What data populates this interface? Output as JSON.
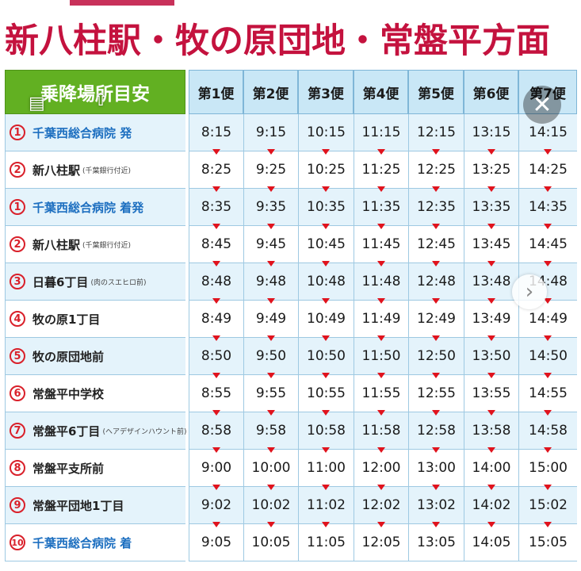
{
  "title": "新八柱駅・牧の原団地・常盤平方面",
  "table": {
    "stop_header": "乗降場所目安",
    "trips": [
      "第1便",
      "第2便",
      "第3便",
      "第4便",
      "第5便",
      "第6便",
      "第7便"
    ],
    "rows": [
      {
        "num": "1",
        "name": "千葉西総合病院 発",
        "note": "",
        "highlight": true,
        "times": [
          "8:15",
          "9:15",
          "10:15",
          "11:15",
          "12:15",
          "13:15",
          "14:15"
        ]
      },
      {
        "num": "2",
        "name": "新八柱駅",
        "note": "(千葉銀行付近)",
        "highlight": false,
        "times": [
          "8:25",
          "9:25",
          "10:25",
          "11:25",
          "12:25",
          "13:25",
          "14:25"
        ]
      },
      {
        "num": "1",
        "name": "千葉西総合病院 着発",
        "note": "",
        "highlight": true,
        "times": [
          "8:35",
          "9:35",
          "10:35",
          "11:35",
          "12:35",
          "13:35",
          "14:35"
        ]
      },
      {
        "num": "2",
        "name": "新八柱駅",
        "note": "(千葉銀行付近)",
        "highlight": false,
        "times": [
          "8:45",
          "9:45",
          "10:45",
          "11:45",
          "12:45",
          "13:45",
          "14:45"
        ]
      },
      {
        "num": "3",
        "name": "日暮6丁目",
        "note": "(肉のスエヒロ前)",
        "highlight": false,
        "times": [
          "8:48",
          "9:48",
          "10:48",
          "11:48",
          "12:48",
          "13:48",
          "14:48"
        ]
      },
      {
        "num": "4",
        "name": "牧の原1丁目",
        "note": "",
        "highlight": false,
        "times": [
          "8:49",
          "9:49",
          "10:49",
          "11:49",
          "12:49",
          "13:49",
          "14:49"
        ]
      },
      {
        "num": "5",
        "name": "牧の原団地前",
        "note": "",
        "highlight": false,
        "times": [
          "8:50",
          "9:50",
          "10:50",
          "11:50",
          "12:50",
          "13:50",
          "14:50"
        ]
      },
      {
        "num": "6",
        "name": "常盤平中学校",
        "note": "",
        "highlight": false,
        "times": [
          "8:55",
          "9:55",
          "10:55",
          "11:55",
          "12:55",
          "13:55",
          "14:55"
        ]
      },
      {
        "num": "7",
        "name": "常盤平6丁目",
        "note": "(ヘアデザインハウント前)",
        "highlight": false,
        "times": [
          "8:58",
          "9:58",
          "10:58",
          "11:58",
          "12:58",
          "13:58",
          "14:58"
        ]
      },
      {
        "num": "8",
        "name": "常盤平支所前",
        "note": "",
        "highlight": false,
        "times": [
          "9:00",
          "10:00",
          "11:00",
          "12:00",
          "13:00",
          "14:00",
          "15:00"
        ]
      },
      {
        "num": "9",
        "name": "常盤平団地1丁目",
        "note": "",
        "highlight": false,
        "times": [
          "9:02",
          "10:02",
          "11:02",
          "12:02",
          "13:02",
          "14:02",
          "15:02"
        ]
      },
      {
        "num": "10",
        "name": "千葉西総合病院 着",
        "note": "",
        "highlight": true,
        "times": [
          "9:05",
          "10:05",
          "11:05",
          "12:05",
          "13:05",
          "14:05",
          "15:05"
        ]
      }
    ]
  },
  "overlay": {
    "image_icon": "image-icon",
    "share_icon": "share-icon",
    "close_icon": "close-icon",
    "next_icon": "chevron-right-icon"
  },
  "colors": {
    "title": "#c4123e",
    "stop_header_bg": "#62b022",
    "trip_header_bg": "#c9e7f6",
    "row_blue": "#e4f3fb",
    "arrow": "#e0131d",
    "highlight_text": "#1d6fc0"
  }
}
